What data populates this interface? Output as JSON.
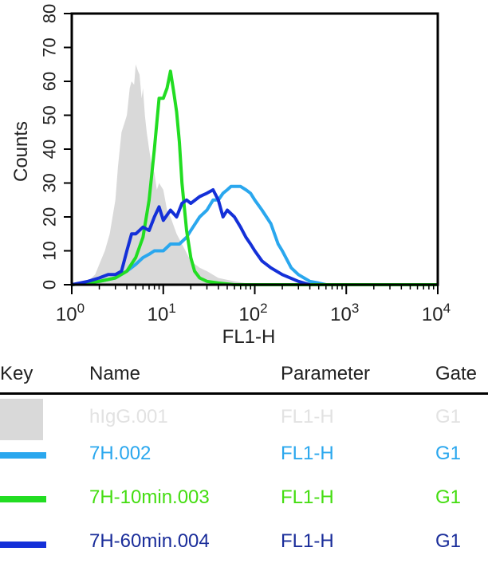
{
  "chart_data": {
    "type": "area",
    "xlabel": "FL1-H",
    "ylabel": "Counts",
    "xscale": "log",
    "xlim": [
      1,
      10000
    ],
    "ylim": [
      0,
      80
    ],
    "x_ticks": [
      {
        "base": "10",
        "exp": "0",
        "value": 1
      },
      {
        "base": "10",
        "exp": "1",
        "value": 10
      },
      {
        "base": "10",
        "exp": "2",
        "value": 100
      },
      {
        "base": "10",
        "exp": "3",
        "value": 1000
      },
      {
        "base": "10",
        "exp": "4",
        "value": 10000
      }
    ],
    "y_ticks": [
      "0",
      "10",
      "20",
      "30",
      "40",
      "50",
      "60",
      "70",
      "80"
    ],
    "y_tick_values": [
      0,
      10,
      20,
      30,
      40,
      50,
      60,
      70,
      80
    ],
    "series": [
      {
        "name": "hIgG.001",
        "style": "filled",
        "color": "#d9d9d9",
        "x": [
          1,
          1.5,
          1.8,
          2,
          2.3,
          2.6,
          3,
          3.2,
          3.5,
          3.8,
          4,
          4.3,
          4.5,
          4.8,
          5,
          5.3,
          5.5,
          5.8,
          6,
          6.3,
          6.6,
          7,
          7.5,
          8,
          8.5,
          9,
          10,
          11,
          12,
          14,
          16,
          20,
          25,
          30,
          40,
          60,
          100
        ],
        "y": [
          0,
          1,
          3,
          6,
          10,
          15,
          25,
          35,
          45,
          48,
          50,
          58,
          60,
          59,
          65,
          63,
          62,
          55,
          58,
          50,
          45,
          40,
          35,
          33,
          28,
          30,
          28,
          22,
          20,
          15,
          12,
          7,
          5,
          4,
          2,
          1,
          0
        ]
      },
      {
        "name": "7H.002",
        "style": "line",
        "color": "#2aa7ee",
        "x": [
          1,
          2,
          3,
          4,
          5,
          6,
          7,
          8,
          10,
          12,
          15,
          18,
          20,
          25,
          30,
          35,
          40,
          45,
          50,
          55,
          60,
          70,
          80,
          90,
          100,
          120,
          150,
          180,
          200,
          250,
          300,
          400,
          500,
          600
        ],
        "y": [
          0,
          1,
          2,
          4,
          6,
          8,
          9,
          10,
          10,
          12,
          12,
          14,
          16,
          20,
          22,
          25,
          25,
          27,
          28,
          29,
          29,
          29,
          28,
          27,
          25,
          22,
          18,
          12,
          10,
          5,
          3,
          1,
          0.5,
          0
        ]
      },
      {
        "name": "7H-10min.003",
        "style": "line",
        "color": "#22dd22",
        "x": [
          1,
          2,
          3,
          4,
          5,
          6,
          7,
          8,
          9,
          10,
          11,
          12,
          13,
          14,
          15,
          16,
          18,
          20,
          22,
          25,
          30,
          40,
          60,
          100,
          10000
        ],
        "y": [
          0,
          1,
          2,
          4,
          8,
          14,
          25,
          40,
          55,
          55,
          58,
          63,
          57,
          51,
          42,
          30,
          16,
          8,
          4,
          2,
          1,
          0.5,
          0,
          0,
          0
        ]
      },
      {
        "name": "7H-60min.004",
        "style": "line",
        "color": "#1430d8",
        "x": [
          1,
          1.5,
          2,
          2.5,
          3,
          3.5,
          4,
          4.5,
          5,
          6,
          7,
          8,
          9,
          10,
          12,
          14,
          16,
          18,
          20,
          25,
          30,
          35,
          40,
          45,
          50,
          60,
          70,
          80,
          90,
          100,
          120,
          150,
          200,
          300,
          400
        ],
        "y": [
          0,
          1,
          2,
          3,
          3,
          4,
          10,
          15,
          15,
          17,
          16,
          20,
          23,
          19,
          22,
          20,
          24,
          25,
          24,
          26,
          27,
          28,
          25,
          20,
          22,
          20,
          17,
          14,
          12,
          10,
          7,
          5,
          3,
          1,
          0
        ]
      }
    ]
  },
  "key": {
    "headers": {
      "key": "Key",
      "name": "Name",
      "parameter": "Parameter",
      "gate": "Gate"
    },
    "rows": [
      {
        "name": "hIgG.001",
        "parameter": "FL1-H",
        "gate": "G1",
        "color": "#d9d9d9",
        "text_color": "#e2e2e2",
        "swatch": "fill"
      },
      {
        "name": "7H.002",
        "parameter": "FL1-H",
        "gate": "G1",
        "color": "#2aa7ee",
        "text_color": "#2aa7ee",
        "swatch": "line"
      },
      {
        "name": "7H-10min.003",
        "parameter": "FL1-H",
        "gate": "G1",
        "color": "#22dd22",
        "text_color": "#44dd11",
        "swatch": "line"
      },
      {
        "name": "7H-60min.004",
        "parameter": "FL1-H",
        "gate": "G1",
        "color": "#1430d8",
        "text_color": "#1a2d9a",
        "swatch": "line"
      }
    ]
  }
}
